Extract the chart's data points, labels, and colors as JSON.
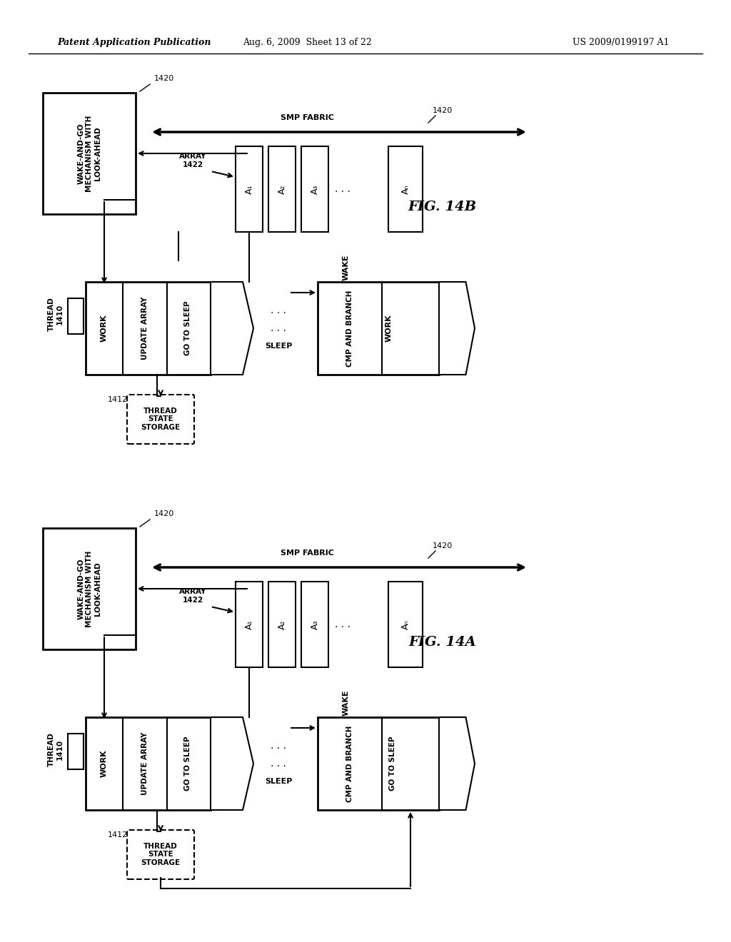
{
  "title_left": "Patent Application Publication",
  "title_mid": "Aug. 6, 2009  Sheet 13 of 22",
  "title_right": "US 2009/0199197 A1",
  "bg_color": "#ffffff",
  "line_color": "#000000",
  "fig_label_B": "FIG. 14B",
  "fig_label_A": "FIG. 14A"
}
